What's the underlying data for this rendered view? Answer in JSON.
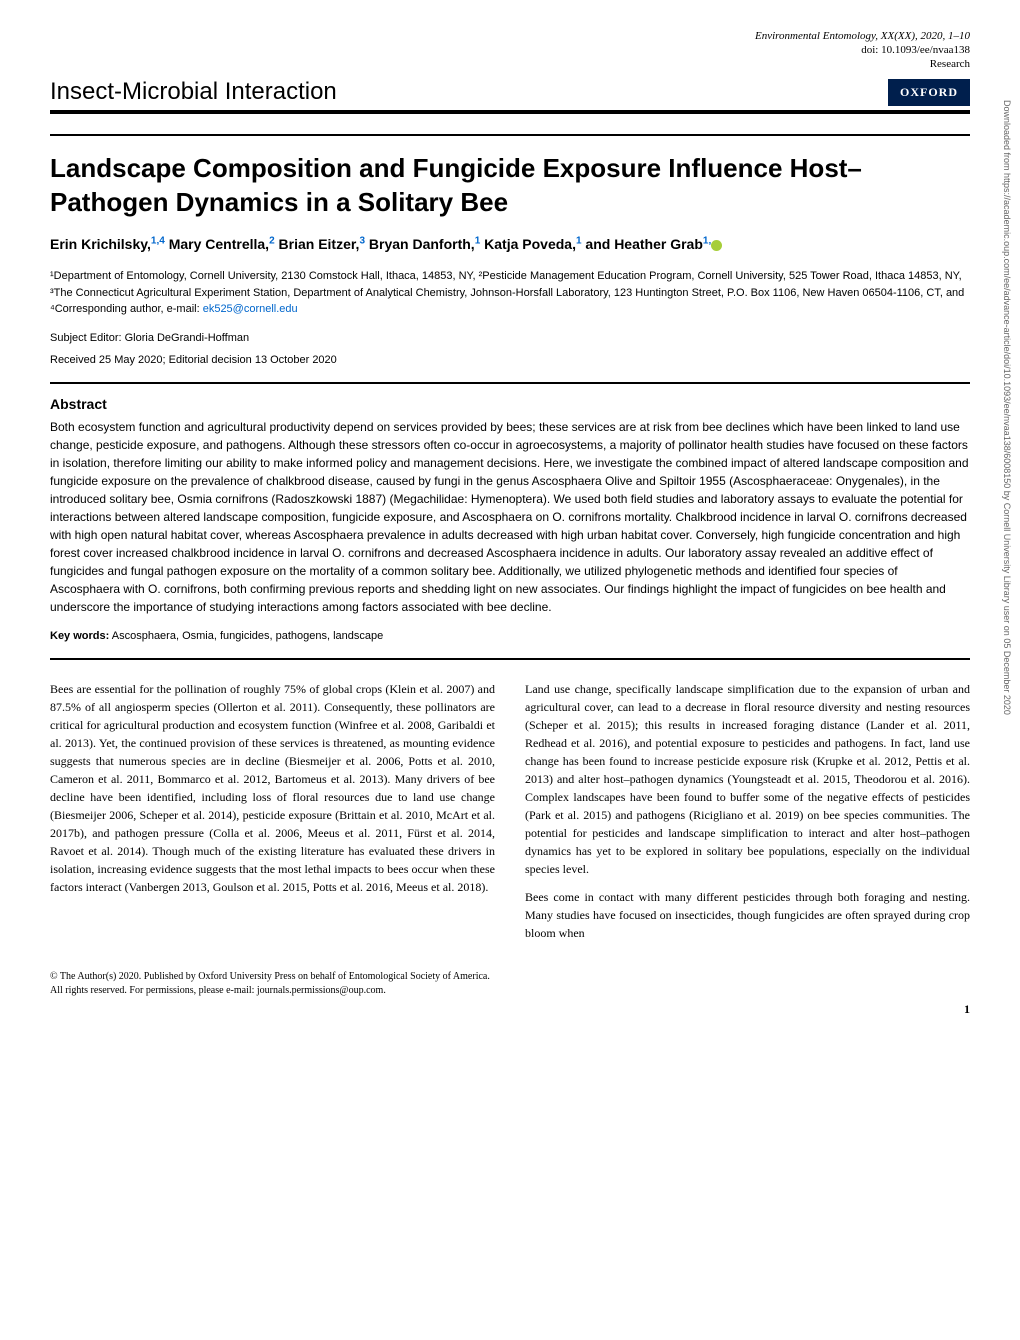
{
  "header": {
    "journal": "Environmental Entomology, XX(XX), 2020, 1–10",
    "doi": "doi: 10.1093/ee/nvaa138",
    "type": "Research",
    "section": "Insect-Microbial Interaction",
    "publisher_badge": "OXFORD"
  },
  "article": {
    "title": "Landscape Composition and Fungicide Exposure Influence Host–Pathogen Dynamics in a Solitary Bee",
    "authors_html": "Erin Krichilsky,<sup>1,4</sup> Mary Centrella,<sup>2</sup> Brian Eitzer,<sup>3</sup> Bryan Danforth,<sup>1</sup> Katja Poveda,<sup>1</sup> and Heather Grab<sup>1,</sup>",
    "affiliations": "¹Department of Entomology, Cornell University, 2130 Comstock Hall, Ithaca, 14853, NY, ²Pesticide Management Education Program, Cornell University, 525 Tower Road, Ithaca 14853, NY, ³The Connecticut Agricultural Experiment Station, Department of Analytical Chemistry, Johnson-Horsfall Laboratory, 123 Huntington Street, P.O. Box 1106, New Haven 06504-1106, CT, and ⁴Corresponding author, e-mail: ",
    "email": "ek525@cornell.edu",
    "subject_editor": "Subject Editor: Gloria DeGrandi-Hoffman",
    "dates": "Received 25 May 2020; Editorial decision 13 October 2020"
  },
  "abstract": {
    "heading": "Abstract",
    "text": "Both ecosystem function and agricultural productivity depend on services provided by bees; these services are at risk from bee declines which have been linked to land use change, pesticide exposure, and pathogens. Although these stressors often co-occur in agroecosystems, a majority of pollinator health studies have focused on these factors in isolation, therefore limiting our ability to make informed policy and management decisions. Here, we investigate the combined impact of altered landscape composition and fungicide exposure on the prevalence of chalkbrood disease, caused by fungi in the genus Ascosphaera Olive and Spiltoir 1955 (Ascosphaeraceae: Onygenales), in the introduced solitary bee, Osmia cornifrons (Radoszkowski 1887) (Megachilidae: Hymenoptera). We used both field studies and laboratory assays to evaluate the potential for interactions between altered landscape composition, fungicide exposure, and Ascosphaera on O. cornifrons mortality. Chalkbrood incidence in larval O. cornifrons decreased with high open natural habitat cover, whereas Ascosphaera prevalence in adults decreased with high urban habitat cover. Conversely, high fungicide concentration and high forest cover increased chalkbrood incidence in larval O. cornifrons and decreased Ascosphaera incidence in adults. Our laboratory assay revealed an additive effect of fungicides and fungal pathogen exposure on the mortality of a common solitary bee. Additionally, we utilized phylogenetic methods and identified four species of Ascosphaera with O. cornifrons, both confirming previous reports and shedding light on new associates. Our findings highlight the impact of fungicides on bee health and underscore the importance of studying interactions among factors associated with bee decline.",
    "keywords_label": "Key words:",
    "keywords": "Ascosphaera, Osmia, fungicides, pathogens, landscape"
  },
  "body": {
    "col1_p1": "Bees are essential for the pollination of roughly 75% of global crops (Klein et al. 2007) and 87.5% of all angiosperm species (Ollerton et al. 2011). Consequently, these pollinators are critical for agricultural production and ecosystem function (Winfree et al. 2008, Garibaldi et al. 2013). Yet, the continued provision of these services is threatened, as mounting evidence suggests that numerous species are in decline (Biesmeijer et al. 2006, Potts et al. 2010, Cameron et al. 2011, Bommarco et al. 2012, Bartomeus et al. 2013). Many drivers of bee decline have been identified, including loss of floral resources due to land use change (Biesmeijer 2006, Scheper et al. 2014), pesticide exposure (Brittain et al. 2010, McArt et al. 2017b), and pathogen pressure (Colla et al. 2006, Meeus et al. 2011, Fürst et al. 2014, Ravoet et al. 2014). Though much of the existing literature has evaluated these drivers in isolation, increasing evidence suggests that the most lethal impacts to bees occur when these factors interact (Vanbergen 2013, Goulson et al. 2015, Potts et al. 2016, Meeus et al. 2018).",
    "col2_p1": "Land use change, specifically landscape simplification due to the expansion of urban and agricultural cover, can lead to a decrease in floral resource diversity and nesting resources (Scheper et al. 2015); this results in increased foraging distance (Lander et al. 2011, Redhead et al. 2016), and potential exposure to pesticides and pathogens. In fact, land use change has been found to increase pesticide exposure risk (Krupke et al. 2012, Pettis et al. 2013) and alter host–pathogen dynamics (Youngsteadt et al. 2015, Theodorou et al. 2016). Complex landscapes have been found to buffer some of the negative effects of pesticides (Park et al. 2015) and pathogens (Ricigliano et al. 2019) on bee species communities. The potential for pesticides and landscape simplification to interact and alter host–pathogen dynamics has yet to be explored in solitary bee populations, especially on the individual species level.",
    "col2_p2": "Bees come in contact with many different pesticides through both foraging and nesting. Many studies have focused on insecticides, though fungicides are often sprayed during crop bloom when"
  },
  "footer": {
    "copyright_l1": "© The Author(s) 2020. Published by Oxford University Press on behalf of Entomological Society of America.",
    "copyright_l2": "All rights reserved. For permissions, please e-mail: journals.permissions@oup.com.",
    "page_num": "1"
  },
  "sidebar": "Downloaded from https://academic.oup.com/ee/advance-article/doi/10.1093/ee/nvaa138/6008150 by Cornell University Library user on 05 December 2020",
  "colors": {
    "link": "#0066cc",
    "badge_bg": "#001f4d",
    "orcid": "#a6ce39"
  }
}
